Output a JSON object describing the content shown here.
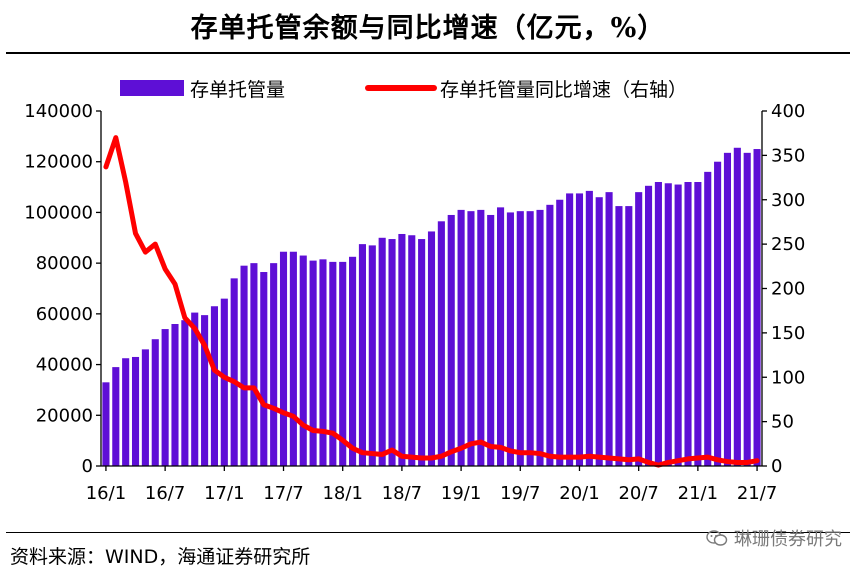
{
  "title": "存单托管余额与同比增速（亿元，%）",
  "source": "资料来源：WIND，海通证券研究所",
  "watermark": "琳珊债券研究",
  "colors": {
    "bar": "#5e0fd6",
    "line": "#ff0000",
    "axis": "#000000"
  },
  "chart_data": {
    "type": "bar+line",
    "x": [
      "16/1",
      "16/2",
      "16/3",
      "16/4",
      "16/5",
      "16/6",
      "16/7",
      "16/8",
      "16/9",
      "16/10",
      "16/11",
      "16/12",
      "17/1",
      "17/2",
      "17/3",
      "17/4",
      "17/5",
      "17/6",
      "17/7",
      "17/8",
      "17/9",
      "17/10",
      "17/11",
      "17/12",
      "18/1",
      "18/2",
      "18/3",
      "18/4",
      "18/5",
      "18/6",
      "18/7",
      "18/8",
      "18/9",
      "18/10",
      "18/11",
      "18/12",
      "19/1",
      "19/2",
      "19/3",
      "19/4",
      "19/5",
      "19/6",
      "19/7",
      "19/8",
      "19/9",
      "19/10",
      "19/11",
      "19/12",
      "20/1",
      "20/2",
      "20/3",
      "20/4",
      "20/5",
      "20/6",
      "20/7",
      "20/8",
      "20/9",
      "20/10",
      "20/11",
      "20/12",
      "21/1",
      "21/2",
      "21/3",
      "21/4",
      "21/5",
      "21/6",
      "21/7"
    ],
    "xtick_labels": [
      "16/1",
      "16/7",
      "17/1",
      "17/7",
      "18/1",
      "18/7",
      "19/1",
      "19/7",
      "20/1",
      "20/7",
      "21/1",
      "21/7"
    ],
    "xtick_every": 6,
    "series": [
      {
        "name": "存单托管量",
        "type": "bar",
        "axis": "left",
        "values": [
          33000,
          39000,
          42500,
          43000,
          46000,
          50000,
          54000,
          56000,
          57500,
          60500,
          59500,
          63000,
          66000,
          74000,
          79000,
          80000,
          76500,
          80000,
          84500,
          84500,
          83000,
          81000,
          81500,
          80500,
          80500,
          82500,
          87500,
          87000,
          90000,
          89500,
          91500,
          91000,
          89500,
          92500,
          96500,
          99000,
          101000,
          100500,
          101000,
          99000,
          102000,
          100000,
          100500,
          100500,
          101000,
          103000,
          105000,
          107500,
          107500,
          108500,
          106000,
          108000,
          102500,
          102500,
          108000,
          110500,
          112000,
          111500,
          111000,
          112000,
          112000,
          116000,
          120000,
          123500,
          125500,
          123500,
          125000
        ]
      },
      {
        "name": "存单托管量同比增速（右轴）",
        "type": "line",
        "axis": "right",
        "values": [
          337,
          370,
          320,
          262,
          241,
          250,
          222,
          205,
          167,
          155,
          136,
          108,
          100,
          95,
          88,
          88,
          69,
          65,
          60,
          56,
          46,
          40,
          39,
          37,
          29,
          20,
          15,
          14,
          13,
          18,
          11,
          10,
          9,
          9,
          11,
          16,
          20,
          25,
          27,
          22,
          21,
          17,
          15,
          15,
          14,
          11,
          10,
          10,
          10,
          11,
          10,
          9,
          8,
          7,
          8,
          4,
          1,
          4,
          6,
          8,
          9,
          10,
          7,
          5,
          4,
          4,
          6
        ]
      }
    ],
    "y_left": {
      "min": 0,
      "max": 140000,
      "ticks": [
        0,
        20000,
        40000,
        60000,
        80000,
        100000,
        120000,
        140000
      ]
    },
    "y_right": {
      "min": 0,
      "max": 400,
      "ticks": [
        0,
        50,
        100,
        150,
        200,
        250,
        300,
        350,
        400
      ]
    },
    "legend_position": "top"
  }
}
